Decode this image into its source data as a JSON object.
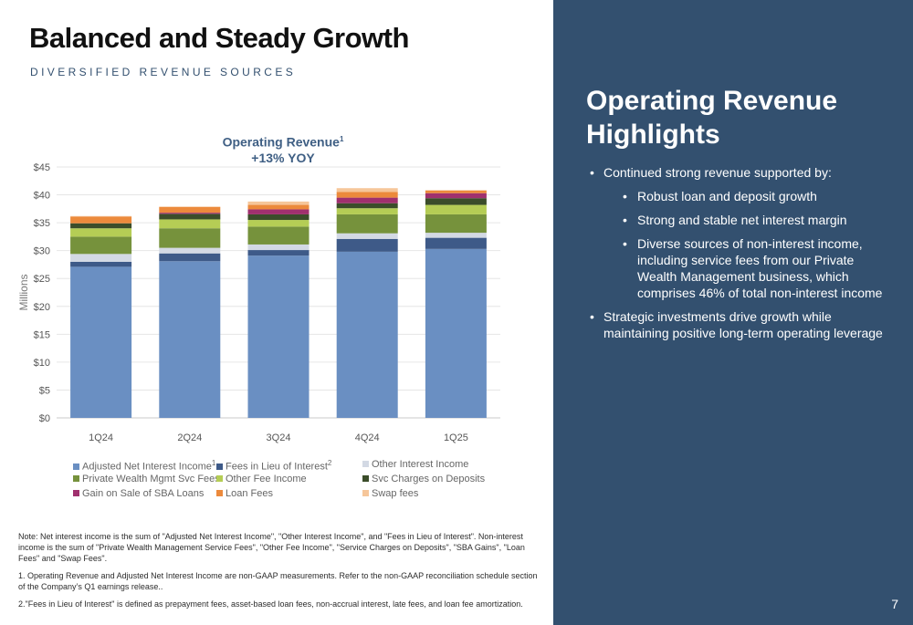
{
  "header": {
    "title": "Balanced and Steady Growth",
    "subtitle": "DIVERSIFIED REVENUE SOURCES"
  },
  "chart_data": {
    "type": "bar",
    "stacked": true,
    "title": "Operating Revenue",
    "title_footnote": "1",
    "subtitle": "+13%  YOY",
    "xlabel": "",
    "ylabel": "Millions",
    "ylim": [
      0,
      45
    ],
    "yticks": [
      0,
      5,
      10,
      15,
      20,
      25,
      30,
      35,
      40,
      45
    ],
    "ytick_labels": [
      "$0",
      "$5",
      "$10",
      "$15",
      "$20",
      "$25",
      "$30",
      "$35",
      "$40",
      "$45"
    ],
    "categories": [
      "1Q24",
      "2Q24",
      "3Q24",
      "4Q24",
      "1Q25"
    ],
    "grid": true,
    "legend_position": "bottom",
    "series": [
      {
        "name": "Adjusted Net Interest Income",
        "footnote": "1",
        "color": "#6a8fc2",
        "values": [
          27.1,
          28.1,
          29.1,
          29.8,
          30.3
        ]
      },
      {
        "name": "Fees in Lieu of Interest",
        "footnote": "2",
        "color": "#3e5a88",
        "values": [
          0.9,
          1.4,
          1.0,
          2.3,
          2.0
        ]
      },
      {
        "name": "Other Interest Income",
        "color": "#d3d9e4",
        "values": [
          1.4,
          1.0,
          1.0,
          1.0,
          0.9
        ]
      },
      {
        "name": "Private Wealth Mgmt Svc Fees",
        "color": "#76923c",
        "values": [
          3.1,
          3.5,
          3.2,
          3.4,
          3.3
        ]
      },
      {
        "name": "Other Fee Income",
        "color": "#b5cd55",
        "values": [
          1.5,
          1.6,
          1.2,
          1.1,
          1.7
        ]
      },
      {
        "name": "Svc Charges on Deposits",
        "color": "#3b4d2a",
        "values": [
          0.9,
          1.0,
          1.0,
          0.9,
          1.2
        ]
      },
      {
        "name": "Gain on Sale of SBA Loans",
        "color": "#a0306e",
        "values": [
          0.0,
          0.2,
          0.9,
          1.0,
          0.9
        ]
      },
      {
        "name": "Loan Fees",
        "color": "#ec8a3c",
        "values": [
          1.2,
          1.0,
          0.8,
          1.0,
          0.5
        ]
      },
      {
        "name": "Swap fees",
        "color": "#f6c69a",
        "values": [
          0.1,
          0.1,
          0.6,
          0.7,
          0.0
        ]
      }
    ]
  },
  "notes": {
    "note": "Note: Net interest income is the sum of \"Adjusted Net Interest Income\", \"Other Interest Income\", and \"Fees in Lieu of Interest\". Non-interest income is the sum of \"Private Wealth Management Service Fees\", \"Other Fee Income\", \"Service Charges on Deposits\", \"SBA Gains\",  \"Loan Fees\" and \"Swap Fees\".",
    "footnote_1": "1. Operating Revenue and Adjusted Net Interest Income are non-GAAP measurements. Refer to the non-GAAP reconciliation schedule section of the Company’s Q1 earnings release..",
    "footnote_2": "2.\"Fees in Lieu of Interest\" is defined as prepayment fees, asset-based loan fees, non-accrual interest, late fees, and loan fee amortization."
  },
  "highlights": {
    "title": "Operating Revenue Highlights",
    "bullet_1": "Continued strong revenue supported by:",
    "sub_bullets": [
      "Robust loan and deposit growth",
      "Strong and stable net interest margin",
      "Diverse sources of non-interest income, including  service fees from our Private Wealth Management business, which comprises 46% of total non-interest income"
    ],
    "bullet_2": "Strategic investments drive growth while maintaining positive long-term operating leverage"
  },
  "page_number": "7"
}
